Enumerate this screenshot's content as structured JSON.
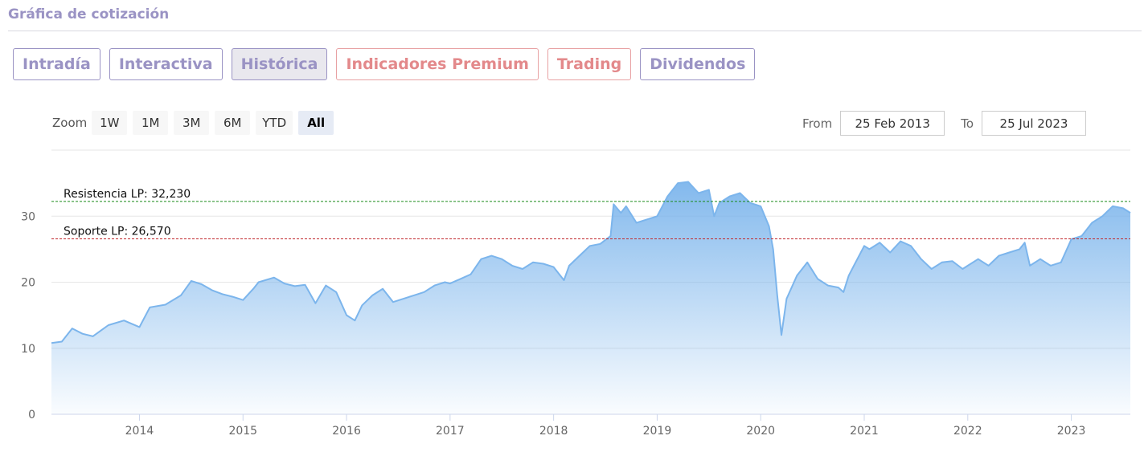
{
  "page": {
    "title": "Gráfica de cotización"
  },
  "tabs": [
    {
      "label": "Intradía",
      "active": false,
      "premium": false
    },
    {
      "label": "Interactiva",
      "active": false,
      "premium": false
    },
    {
      "label": "Histórica",
      "active": true,
      "premium": false
    },
    {
      "label": "Indicadores Premium",
      "active": false,
      "premium": true
    },
    {
      "label": "Trading",
      "active": false,
      "premium": true
    },
    {
      "label": "Dividendos",
      "active": false,
      "premium": false
    }
  ],
  "zoom": {
    "label": "Zoom",
    "buttons": [
      {
        "label": "1W",
        "active": false
      },
      {
        "label": "1M",
        "active": false
      },
      {
        "label": "3M",
        "active": false
      },
      {
        "label": "6M",
        "active": false
      },
      {
        "label": "YTD",
        "active": false
      },
      {
        "label": "All",
        "active": true
      }
    ]
  },
  "range": {
    "from_label": "From",
    "from_value": "25 Feb 2013",
    "to_label": "To",
    "to_value": "25 Jul 2023"
  },
  "colors": {
    "accent": "#9a93c4",
    "premium": "#e3898b",
    "series_line": "#7cb5ec",
    "resistance_line": "#1a8a1a",
    "support_line": "#c0282d"
  },
  "chart_data": {
    "type": "area",
    "y_ticks": [
      0,
      10,
      20,
      30
    ],
    "ylim": [
      0,
      40
    ],
    "x_ticks": [
      "2014",
      "2015",
      "2016",
      "2017",
      "2018",
      "2019",
      "2020",
      "2021",
      "2022",
      "2023"
    ],
    "xlim": [
      2013.15,
      2023.57
    ],
    "reference_lines": [
      {
        "label": "Resistencia LP: 32,230",
        "value": 32.23
      },
      {
        "label": "Soporte LP: 26,570",
        "value": 26.57
      }
    ],
    "series": [
      {
        "x": [
          2013.15,
          2013.25,
          2013.35,
          2013.45,
          2013.55,
          2013.7,
          2013.85,
          2014.0,
          2014.1,
          2014.25,
          2014.4,
          2014.5,
          2014.6,
          2014.7,
          2014.8,
          2014.9,
          2015.0,
          2015.1,
          2015.15,
          2015.3,
          2015.4,
          2015.5,
          2015.6,
          2015.7,
          2015.8,
          2015.9,
          2016.0,
          2016.08,
          2016.15,
          2016.25,
          2016.35,
          2016.45,
          2016.55,
          2016.65,
          2016.75,
          2016.85,
          2016.95,
          2017.0,
          2017.1,
          2017.2,
          2017.3,
          2017.4,
          2017.5,
          2017.6,
          2017.7,
          2017.8,
          2017.9,
          2018.0,
          2018.1,
          2018.15,
          2018.25,
          2018.35,
          2018.45,
          2018.55,
          2018.58,
          2018.65,
          2018.7,
          2018.8,
          2018.9,
          2019.0,
          2019.1,
          2019.2,
          2019.3,
          2019.4,
          2019.5,
          2019.55,
          2019.6,
          2019.7,
          2019.8,
          2019.9,
          2020.0,
          2020.08,
          2020.12,
          2020.16,
          2020.2,
          2020.25,
          2020.35,
          2020.45,
          2020.55,
          2020.65,
          2020.75,
          2020.8,
          2020.85,
          2020.9,
          2021.0,
          2021.05,
          2021.15,
          2021.25,
          2021.35,
          2021.45,
          2021.55,
          2021.65,
          2021.75,
          2021.85,
          2021.95,
          2022.0,
          2022.1,
          2022.2,
          2022.3,
          2022.4,
          2022.5,
          2022.55,
          2022.6,
          2022.7,
          2022.8,
          2022.9,
          2023.0,
          2023.1,
          2023.2,
          2023.3,
          2023.4,
          2023.5,
          2023.57
        ],
        "values": [
          10.8,
          11.0,
          13.0,
          12.2,
          11.8,
          13.5,
          14.2,
          13.2,
          16.2,
          16.6,
          18.0,
          20.2,
          19.7,
          18.8,
          18.2,
          17.8,
          17.3,
          19.0,
          20.0,
          20.7,
          19.8,
          19.4,
          19.6,
          16.8,
          19.5,
          18.5,
          15.0,
          14.2,
          16.5,
          18.0,
          19.0,
          17.0,
          17.5,
          18.0,
          18.5,
          19.5,
          20.0,
          19.8,
          20.5,
          21.2,
          23.5,
          24.0,
          23.5,
          22.5,
          22.0,
          23.0,
          22.8,
          22.3,
          20.3,
          22.5,
          24.0,
          25.5,
          25.8,
          27.0,
          31.8,
          30.5,
          31.5,
          29.0,
          29.5,
          30.0,
          33.0,
          35.0,
          35.2,
          33.5,
          34.0,
          30.0,
          32.0,
          33.0,
          33.5,
          32.0,
          31.5,
          28.5,
          25.0,
          18.0,
          12.0,
          17.5,
          21.0,
          23.0,
          20.5,
          19.5,
          19.2,
          18.5,
          21.0,
          22.5,
          25.5,
          25.0,
          26.0,
          24.5,
          26.2,
          25.5,
          23.5,
          22.0,
          23.0,
          23.2,
          22.0,
          22.5,
          23.5,
          22.5,
          24.0,
          24.5,
          25.0,
          26.0,
          22.5,
          23.5,
          22.5,
          23.0,
          26.5,
          27.0,
          29.0,
          30.0,
          31.5,
          31.2,
          30.5
        ]
      }
    ]
  }
}
